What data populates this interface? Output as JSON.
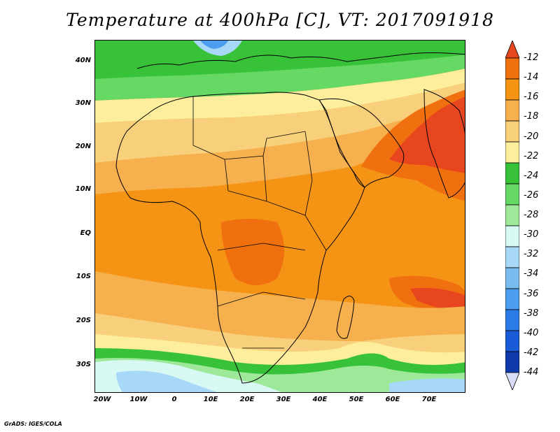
{
  "title": "Temperature at 400hPa [C], VT: 2017091918",
  "footer": "GrADS: IGES/COLA",
  "map": {
    "region": "Africa and Arabian Peninsula",
    "lat_labels": [
      "40N",
      "30N",
      "20N",
      "10N",
      "EQ",
      "10S",
      "20S",
      "30S"
    ],
    "lon_labels": [
      "20W",
      "10W",
      "0",
      "10E",
      "20E",
      "30E",
      "40E",
      "50E",
      "60E",
      "70E"
    ],
    "lon_range": [
      -22,
      80
    ],
    "lat_range": [
      -37,
      45
    ]
  },
  "colorbar": {
    "labels": [
      "-12",
      "-14",
      "-16",
      "-18",
      "-20",
      "-22",
      "-24",
      "-26",
      "-28",
      "-30",
      "-32",
      "-34",
      "-36",
      "-38",
      "-40",
      "-42",
      "-44"
    ],
    "colors": [
      "#e8461e",
      "#f07010",
      "#f59414",
      "#f6b04e",
      "#f8cf7a",
      "#fcee9c",
      "#37c23a",
      "#66d864",
      "#9ee89a",
      "#d8f8f4",
      "#a8d8f8",
      "#78bcf0",
      "#4c9cf0",
      "#2c7ce8",
      "#1a5cd8",
      "#0e3aac",
      "#0a1c78"
    ],
    "top_arrow_color": "#e8461e",
    "bottom_arrow_color": "#d8dcf8"
  }
}
